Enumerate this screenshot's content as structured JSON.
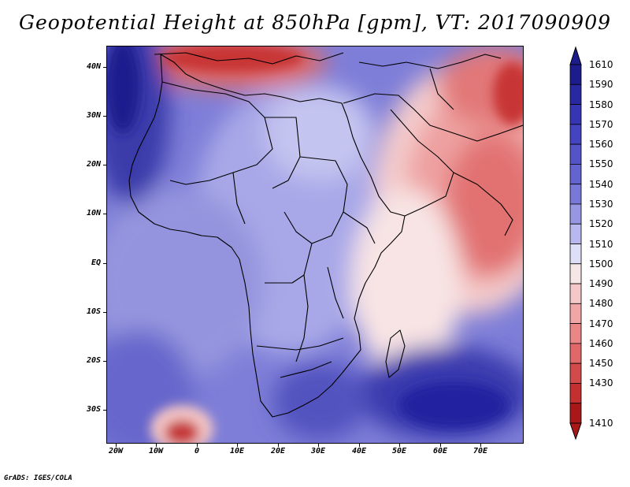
{
  "title": "Geopotential Height at 850hPa [gpm], VT: 2017090909",
  "credit": "GrADS: IGES/COLA",
  "lat_labels": [
    "40N",
    "30N",
    "20N",
    "10N",
    "EQ",
    "10S",
    "20S",
    "30S"
  ],
  "lon_labels": [
    "20W",
    "10W",
    "0",
    "10E",
    "20E",
    "30E",
    "40E",
    "50E",
    "60E",
    "70E"
  ],
  "colorbar": {
    "levels": [
      "1610",
      "1590",
      "1580",
      "1570",
      "1560",
      "1550",
      "1540",
      "1530",
      "1520",
      "1510",
      "1500",
      "1490",
      "1480",
      "1470",
      "1460",
      "1450",
      "1430",
      "1410"
    ],
    "colors": [
      "#1c1c8c",
      "#2828a0",
      "#3636b4",
      "#4444c0",
      "#5454c8",
      "#6464d0",
      "#7878d8",
      "#9696e2",
      "#b8b8ee",
      "#dedef6",
      "#f6e6e6",
      "#f4c8c8",
      "#f0a6a6",
      "#ea8686",
      "#e06868",
      "#d24a4a",
      "#c43030",
      "#a81818"
    ]
  }
}
